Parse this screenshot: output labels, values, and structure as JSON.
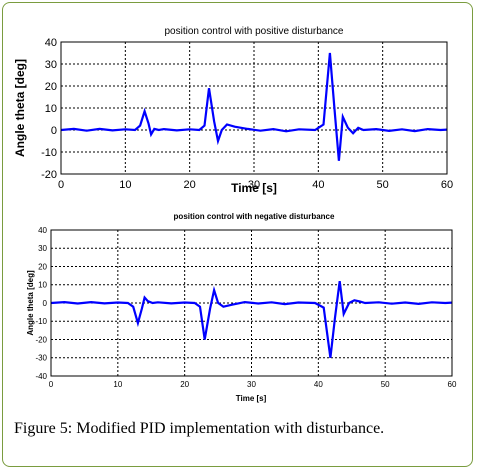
{
  "figure": {
    "caption": "Figure 5: Modified PID implementation with disturbance.",
    "line_color": "#0000ff"
  },
  "chart_data": [
    {
      "type": "line",
      "title": "position control with positive disturbance",
      "xlabel": "Time [s]",
      "ylabel": "Angle theta [deg]",
      "xlim": [
        0,
        60
      ],
      "ylim": [
        -20,
        40
      ],
      "xticks": [
        0,
        10,
        20,
        30,
        40,
        50,
        60
      ],
      "yticks": [
        -20,
        -10,
        0,
        10,
        20,
        30,
        40
      ],
      "grid": true,
      "series": [
        {
          "x": [
            0,
            2,
            4,
            6,
            8,
            10,
            11.5,
            12.3,
            13,
            13.6,
            14,
            14.5,
            15.2,
            16,
            18,
            20,
            21.5,
            22.3,
            23,
            23.8,
            24.4,
            25,
            25.8,
            27,
            29,
            31,
            33,
            35,
            37,
            39.5,
            40.8,
            41.8,
            42.5,
            43.2,
            43.8,
            44.6,
            45.4,
            46.2,
            47,
            49,
            51,
            53,
            55,
            57,
            59,
            60
          ],
          "y": [
            0,
            0.5,
            -0.3,
            0.5,
            -0.2,
            0.3,
            0,
            2,
            8.5,
            3,
            -2,
            0.5,
            0,
            0.4,
            -0.2,
            0.3,
            0,
            2,
            19,
            4,
            -5,
            0,
            2.5,
            1.5,
            0.5,
            -0.3,
            0.4,
            -0.6,
            0.3,
            0,
            2.5,
            35,
            10,
            -14,
            6,
            1,
            -1.5,
            1,
            0,
            0.4,
            -0.4,
            0.3,
            -0.5,
            0.4,
            0,
            0.2
          ]
        }
      ]
    },
    {
      "type": "line",
      "title": "position control with negative disturbance",
      "xlabel": "Time [s]",
      "ylabel": "Angle theta [deg]",
      "xlim": [
        0,
        60
      ],
      "ylim": [
        -40,
        40
      ],
      "xticks": [
        0,
        10,
        20,
        30,
        40,
        50,
        60
      ],
      "yticks": [
        -40,
        -30,
        -20,
        -10,
        0,
        10,
        20,
        30,
        40
      ],
      "grid": true,
      "series": [
        {
          "x": [
            0,
            2,
            4,
            6,
            8,
            10,
            11.5,
            12.3,
            13,
            13.6,
            14,
            14.5,
            15.2,
            16,
            18,
            20,
            21.5,
            22.3,
            23,
            23.8,
            24.4,
            25,
            25.8,
            27,
            29,
            31,
            33,
            35,
            37,
            39.5,
            40.8,
            41.8,
            42.5,
            43.2,
            43.8,
            44.6,
            45.4,
            46.2,
            47,
            49,
            51,
            53,
            55,
            57,
            59,
            60
          ],
          "y": [
            0,
            0.5,
            -0.3,
            0.5,
            -0.2,
            0.3,
            0,
            -2,
            -11,
            -3,
            3,
            1,
            0,
            0.4,
            -0.2,
            0.3,
            0,
            -2,
            -20,
            -3,
            7,
            0,
            -2,
            -1,
            0.5,
            -0.3,
            0.4,
            -0.6,
            0.3,
            0,
            -2.5,
            -30,
            -8,
            12,
            -6,
            0,
            1.5,
            0.8,
            0,
            0.4,
            -0.4,
            0.3,
            -0.5,
            0.4,
            0,
            0.2
          ]
        }
      ]
    }
  ]
}
